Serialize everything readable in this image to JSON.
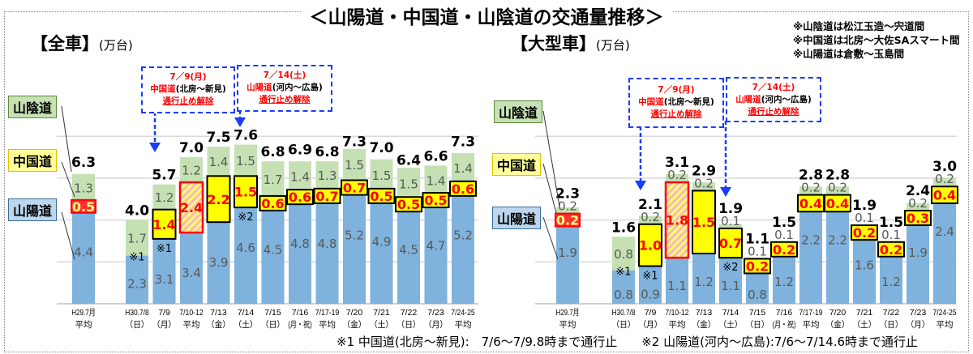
{
  "title": "＜山陽道・中国道・山陰道の交通量推移＞",
  "notes": [
    "※山陰道は松江玉造～宍道間",
    "※中国道は北房～大佐SAスマート間",
    "※山陽道は倉敷～玉島間"
  ],
  "footnotes": [
    "※1 中国道(北房～新見):　7/6～7/9.8時まで通行止",
    "※2 山陽道(河内～広島):7/6～7/14.6時まで通行止"
  ],
  "legend": {
    "sanin": "山陰道",
    "chugoku": "中国道",
    "sanyo": "山陽道"
  },
  "callouts": [
    {
      "date": "7／9(月)",
      "road": "中国道",
      "section": "(北房～新見)",
      "text": "通行止め解除"
    },
    {
      "date": "7／14(土)",
      "road": "山陽道",
      "section": "(河内～広島)",
      "text": "通行止め解除"
    }
  ],
  "chart_data": [
    {
      "type": "bar",
      "stacked": true,
      "title": "【全車】",
      "unit": "(万台)",
      "categories": [
        [
          "H29.7月",
          "平均"
        ],
        [
          "H30.7/8",
          "（日）"
        ],
        [
          "7/9",
          "（月）"
        ],
        [
          "7/10-12",
          "平均"
        ],
        [
          "7/13",
          "（金）"
        ],
        [
          "7/14",
          "（土）"
        ],
        [
          "7/15",
          "（日）"
        ],
        [
          "7/16",
          "(月・祝)"
        ],
        [
          "7/17-19",
          "平均"
        ],
        [
          "7/20",
          "（金）"
        ],
        [
          "7/21",
          "（土）"
        ],
        [
          "7/22",
          "（日）"
        ],
        [
          "7/23",
          "（月）"
        ],
        [
          "7/24-25",
          "平均"
        ]
      ],
      "series": [
        {
          "name": "山陽道",
          "color": "#7fb2dc",
          "values": [
            4.4,
            2.3,
            3.1,
            3.4,
            3.9,
            4.6,
            4.5,
            4.8,
            4.8,
            5.2,
            4.9,
            4.5,
            4.7,
            5.2
          ]
        },
        {
          "name": "中国道",
          "color": "#ffff00",
          "values": [
            0.5,
            null,
            1.4,
            2.4,
            2.2,
            1.5,
            0.6,
            0.6,
            0.7,
            0.7,
            0.5,
            0.5,
            0.5,
            0.6
          ]
        },
        {
          "name": "山陰道",
          "color": "#c5e0b3",
          "values": [
            1.3,
            1.7,
            1.2,
            1.2,
            1.4,
            1.5,
            1.7,
            1.4,
            1.3,
            1.5,
            1.5,
            1.5,
            1.4,
            1.4
          ]
        }
      ],
      "totals": [
        6.3,
        4.0,
        5.7,
        7.0,
        7.5,
        7.6,
        6.8,
        6.9,
        6.8,
        7.3,
        7.0,
        6.4,
        6.6,
        7.3
      ],
      "markers": [
        "",
        "※1",
        "※1",
        "",
        "",
        "※2",
        "",
        "",
        "",
        "",
        "",
        "",
        "",
        ""
      ],
      "ylim": [
        0,
        8
      ],
      "grid": true
    },
    {
      "type": "bar",
      "stacked": true,
      "title": "【大型車】",
      "unit": "(万台)",
      "categories": [
        [
          "H29.7月",
          "平均"
        ],
        [
          "H30.7/8",
          "（日）"
        ],
        [
          "7/9",
          "（月）"
        ],
        [
          "7/10-12",
          "平均"
        ],
        [
          "7/13",
          "（金）"
        ],
        [
          "7/14",
          "（土）"
        ],
        [
          "7/15",
          "（日）"
        ],
        [
          "7/16",
          "(月・祝)"
        ],
        [
          "7/17-19",
          "平均"
        ],
        [
          "7/20",
          "（金）"
        ],
        [
          "7/21",
          "（土）"
        ],
        [
          "7/22",
          "（日）"
        ],
        [
          "7/23",
          "（月）"
        ],
        [
          "7/24-25",
          "平均"
        ]
      ],
      "series": [
        {
          "name": "山陽道",
          "color": "#7fb2dc",
          "values": [
            1.9,
            0.8,
            0.9,
            1.1,
            1.2,
            1.1,
            0.8,
            1.2,
            2.2,
            2.2,
            1.6,
            1.2,
            1.9,
            2.4
          ]
        },
        {
          "name": "中国道",
          "color": "#ffff00",
          "values": [
            0.2,
            null,
            1.0,
            1.8,
            1.5,
            0.7,
            0.2,
            0.2,
            0.4,
            0.4,
            0.2,
            0.2,
            0.3,
            0.4
          ]
        },
        {
          "name": "山陰道",
          "color": "#c5e0b3",
          "values": [
            0.2,
            0.8,
            0.2,
            0.2,
            0.2,
            0.1,
            0.1,
            0.1,
            0.2,
            0.2,
            0.1,
            0.1,
            0.2,
            0.2
          ]
        }
      ],
      "totals": [
        2.3,
        1.6,
        2.1,
        3.1,
        2.9,
        1.9,
        1.1,
        1.5,
        2.8,
        2.8,
        1.9,
        1.5,
        2.4,
        3.0
      ],
      "markers": [
        "",
        "※1",
        "※1",
        "",
        "",
        "※2",
        "",
        "",
        "",
        "",
        "",
        "",
        "",
        ""
      ],
      "ylim": [
        0,
        4
      ],
      "grid": true
    }
  ]
}
